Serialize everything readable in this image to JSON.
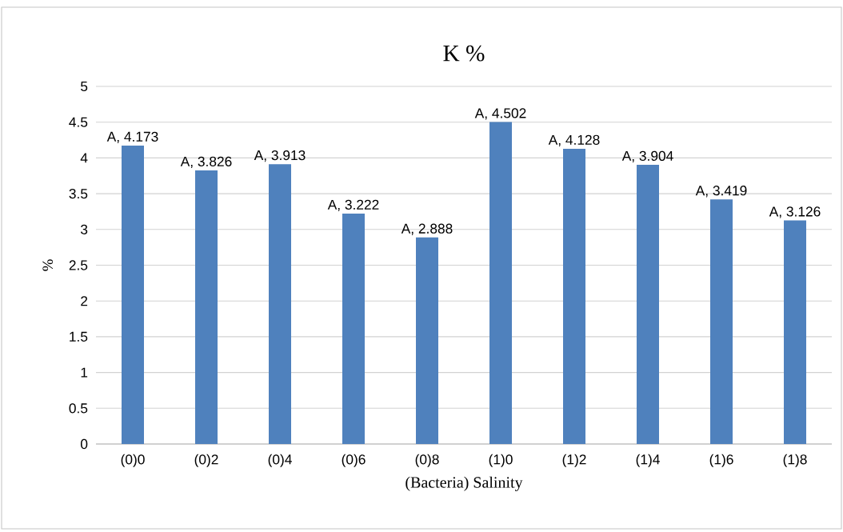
{
  "chart_data": {
    "type": "bar",
    "title": "K %",
    "xlabel": "(Bacteria) Salinity",
    "ylabel": "%",
    "categories": [
      "(0)0",
      "(0)2",
      "(0)4",
      "(0)6",
      "(0)8",
      "(1)0",
      "(1)2",
      "(1)4",
      "(1)6",
      "(1)8"
    ],
    "values": [
      4.173,
      3.826,
      3.913,
      3.222,
      2.888,
      4.502,
      4.128,
      3.904,
      3.419,
      3.126
    ],
    "value_labels": [
      "A, 4.173",
      "A, 3.826",
      "A, 3.913",
      "A, 3.222",
      "A, 2.888",
      "A, 4.502",
      "A, 4.128",
      "A, 3.904",
      "A, 3.419",
      "A, 3.126"
    ],
    "color": "#4f81bd",
    "ylim": [
      0,
      5
    ],
    "yticks": [
      0,
      0.5,
      1,
      1.5,
      2,
      2.5,
      3,
      3.5,
      4,
      4.5,
      5
    ],
    "grid": "y"
  }
}
